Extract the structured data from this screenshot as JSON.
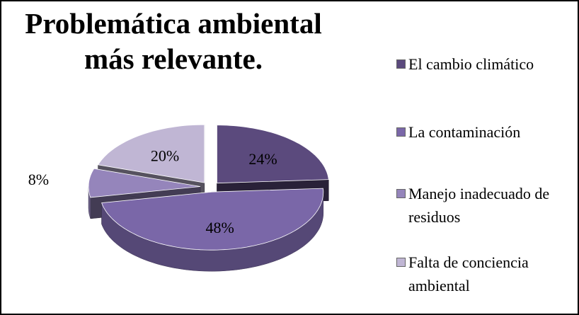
{
  "chart_data": {
    "type": "pie",
    "title": "Problemática ambiental más relevante.",
    "categories": [
      "El cambio climático",
      "La contaminación",
      "Manejo inadecuado de residuos",
      "Falta de conciencia ambiental"
    ],
    "values": [
      24,
      48,
      8,
      20
    ],
    "value_labels": [
      "24%",
      "48%",
      "8%",
      "20%"
    ],
    "colors": [
      "#5b4a7d",
      "#7a67a8",
      "#9585bb",
      "#c0b6d4"
    ],
    "legend": "right"
  }
}
